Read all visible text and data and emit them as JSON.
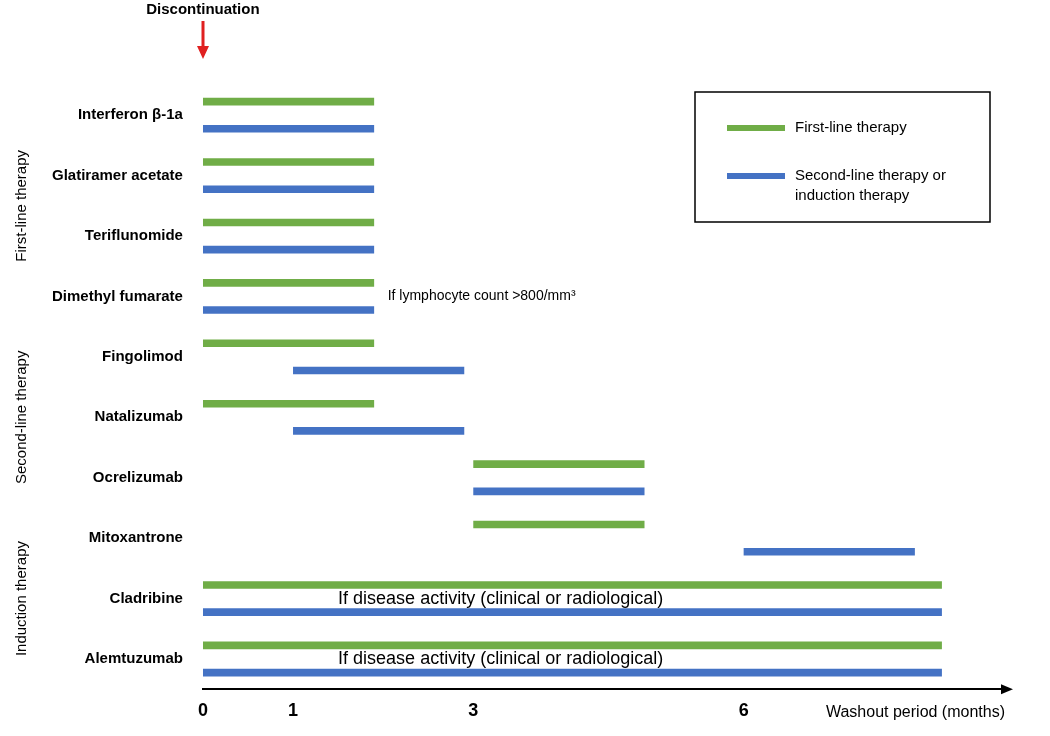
{
  "chart_data": {
    "type": "bar",
    "orientation": "horizontal",
    "xlabel": "Washout period (months)",
    "categories": [
      "Interferon β-1a",
      "Glatiramer acetate",
      "Teriflunomide",
      "Dimethyl fumarate",
      "Fingolimod",
      "Natalizumab",
      "Ocrelizumab",
      "Mitoxantrone",
      "Cladribine",
      "Alemtuzumab"
    ],
    "series": [
      {
        "name": "First-line therapy",
        "color": "#70ad47",
        "base": [
          0,
          0,
          0,
          0,
          0,
          0,
          3,
          3,
          0,
          0
        ],
        "values": [
          1.9,
          1.9,
          1.9,
          1.9,
          1.9,
          1.9,
          1.9,
          1.9,
          8.2,
          8.2
        ]
      },
      {
        "name": "Second-line therapy or induction therapy",
        "color": "#4472c4",
        "base": [
          0,
          0,
          0,
          0,
          1,
          1,
          3,
          6,
          0,
          0
        ],
        "values": [
          1.9,
          1.9,
          1.9,
          1.9,
          1.9,
          1.9,
          1.9,
          1.9,
          8.2,
          8.2
        ]
      }
    ],
    "xlim": [
      0,
      8.9
    ],
    "xticks": [
      0,
      1,
      3,
      6
    ],
    "grid": false,
    "legend": "top right",
    "annotations": [
      "If lymphocyte count >800/mm³",
      "If disease activity (clinical or radiological)",
      "If disease activity (clinical or radiological)",
      "First-line therapy",
      "Second-line therapy",
      "Induction therapy",
      "Discontinuation"
    ]
  }
}
